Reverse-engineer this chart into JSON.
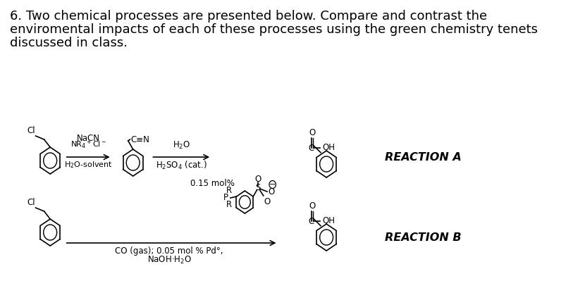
{
  "background_color": "#ffffff",
  "title_lines": [
    "6. Two chemical processes are presented below. Compare and contrast the",
    "enviromental impacts of each of these processes using the green chemistry tenets",
    "discussed in class."
  ],
  "title_fontsize": 13.0,
  "reaction_a_label": "REACTION A",
  "reaction_b_label": "REACTION B"
}
